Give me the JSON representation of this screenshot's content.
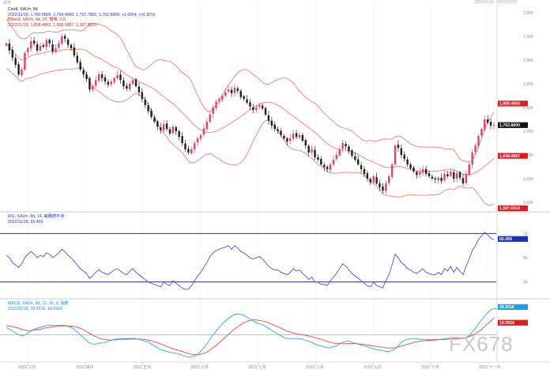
{
  "header": {
    "left_label": "報表",
    "right_label": "2022/11/18 · 2022/11/18"
  },
  "panels": {
    "price": {
      "line1": "Cmdt, XAU=, 8d",
      "line2": "2022/11/18, 1,760.6800, 1,764.4900, 1,757.7800, 1,762.8800, +1.9054, (+0.11%)",
      "line3": "BBand, XAU=, 8d, 20, 簡單, 2.0",
      "line4": "2022/11/18, 1,808.4863, 1,698.0887, 1,587.6910",
      "price_tag": "1,762.8800",
      "upper_tag": "1,808.4863",
      "mid_tag": "1,698.0887",
      "lower_tag": "1,587.6910"
    },
    "rsi": {
      "line1": "RSI, XAU=, 8d, 14, 威爾德平滑",
      "line2": "2022/11/18, 65.459",
      "tag": "65.459"
    },
    "macd": {
      "line1": "MACD, XAU=, 8d, 12, 26, 9, 指數",
      "line2": "2022/11/18, 28.2016, 18.0924",
      "tag_macd": "28.2016",
      "tag_signal": "18.0924"
    }
  },
  "watermark": "FX678",
  "chart_data": [
    {
      "type": "candlestick",
      "title": "Cmdt, XAU=, 8d",
      "ylim": [
        1600,
        2000
      ],
      "y_ticks": [
        "2,000",
        "1,950",
        "1,900",
        "1,850",
        "1,800",
        "1,750",
        "1,700",
        "1,650",
        "1,600"
      ],
      "x_ticks": [
        "2022 三月",
        "2022 四月",
        "2022 五月",
        "2022 六月",
        "2022 七月",
        "2022 八月",
        "2022 九月",
        "2022 十月",
        "2022 十一月"
      ],
      "last": {
        "open": 1760.68,
        "high": 1764.49,
        "low": 1757.78,
        "close": 1762.88,
        "change": 1.9054,
        "change_pct": "+0.11%"
      },
      "bollinger": {
        "period": 20,
        "mult": 2.0,
        "upper": 1808.4863,
        "middle": 1698.0887,
        "lower": 1587.691
      },
      "closes": [
        1935,
        1920,
        1905,
        1890,
        1870,
        1880,
        1915,
        1925,
        1940,
        1935,
        1920,
        1930,
        1928,
        1942,
        1935,
        1918,
        1925,
        1935,
        1950,
        1945,
        1932,
        1925,
        1910,
        1895,
        1880,
        1870,
        1860,
        1838,
        1845,
        1858,
        1870,
        1862,
        1855,
        1848,
        1855,
        1862,
        1868,
        1858,
        1845,
        1840,
        1850,
        1858,
        1845,
        1832,
        1818,
        1805,
        1792,
        1780,
        1770,
        1760,
        1752,
        1765,
        1755,
        1745,
        1760,
        1750,
        1738,
        1725,
        1712,
        1705,
        1712,
        1725,
        1735,
        1742,
        1756,
        1770,
        1785,
        1800,
        1812,
        1818,
        1825,
        1832,
        1838,
        1830,
        1842,
        1835,
        1822,
        1818,
        1810,
        1802,
        1795,
        1800,
        1805,
        1798,
        1785,
        1772,
        1762,
        1755,
        1750,
        1742,
        1735,
        1728,
        1735,
        1745,
        1738,
        1742,
        1730,
        1720,
        1705,
        1712,
        1695,
        1690,
        1680,
        1674,
        1670,
        1680,
        1690,
        1700,
        1712,
        1725,
        1718,
        1708,
        1698,
        1690,
        1680,
        1670,
        1660,
        1650,
        1642,
        1655,
        1640,
        1632,
        1625,
        1640,
        1655,
        1680,
        1720,
        1715,
        1700,
        1692,
        1680,
        1672,
        1665,
        1658,
        1664,
        1670,
        1660,
        1655,
        1650,
        1648,
        1652,
        1645,
        1660,
        1655,
        1665,
        1650,
        1662,
        1652,
        1640,
        1660,
        1680,
        1705,
        1720,
        1740,
        1755,
        1775,
        1768,
        1762,
        1763
      ]
    },
    {
      "type": "line",
      "title": "RSI, XAU=, 8d, 14",
      "ylim": [
        20,
        80
      ],
      "y_ticks": [
        "70",
        "50",
        "30"
      ],
      "levels": [
        70,
        30
      ],
      "last": 65.459,
      "values": [
        52,
        50,
        46,
        44,
        42,
        45,
        50,
        53,
        55,
        53,
        50,
        52,
        51,
        54,
        53,
        50,
        52,
        54,
        57,
        55,
        52,
        50,
        47,
        44,
        41,
        39,
        37,
        33,
        35,
        38,
        40,
        38,
        37,
        36,
        38,
        40,
        41,
        39,
        37,
        36,
        39,
        41,
        38,
        36,
        34,
        32,
        30,
        29,
        28,
        27,
        26,
        30,
        28,
        27,
        31,
        29,
        27,
        25,
        24,
        24,
        27,
        31,
        35,
        38,
        42,
        46,
        51,
        54,
        56,
        57,
        58,
        59,
        60,
        57,
        60,
        58,
        55,
        54,
        52,
        50,
        49,
        50,
        51,
        49,
        46,
        43,
        41,
        40,
        40,
        38,
        37,
        36,
        38,
        41,
        39,
        40,
        37,
        35,
        32,
        34,
        30,
        30,
        28,
        28,
        27,
        31,
        34,
        37,
        41,
        45,
        43,
        40,
        37,
        35,
        33,
        31,
        29,
        27,
        26,
        30,
        27,
        26,
        25,
        31,
        36,
        44,
        53,
        50,
        46,
        44,
        41,
        40,
        38,
        37,
        39,
        41,
        38,
        37,
        36,
        36,
        38,
        36,
        41,
        39,
        43,
        38,
        42,
        39,
        36,
        43,
        49,
        56,
        60,
        65,
        68,
        71,
        69,
        66,
        65
      ]
    },
    {
      "type": "line",
      "title": "MACD, XAU=, 8d, 12, 26, 9",
      "series": [
        {
          "name": "MACD",
          "values": [
            8,
            6,
            4,
            2,
            0,
            -1,
            0,
            2,
            4,
            6,
            7,
            8,
            9,
            10,
            10.5,
            10,
            10,
            10,
            10.5,
            10,
            9,
            8,
            6,
            3,
            0,
            -3,
            -6,
            -9,
            -10,
            -10,
            -9,
            -9,
            -8,
            -7,
            -6,
            -5,
            -4,
            -4,
            -4,
            -4,
            -4,
            -4,
            -4,
            -5,
            -6,
            -7,
            -8,
            -10,
            -12,
            -14,
            -16,
            -17,
            -18,
            -19,
            -19,
            -20,
            -21,
            -22,
            -23,
            -24,
            -24,
            -23,
            -21,
            -18,
            -14,
            -10,
            -5,
            0,
            4,
            8,
            12,
            15,
            18,
            20,
            22,
            22.5,
            22,
            21,
            19,
            17,
            15,
            13,
            12,
            11,
            9,
            7,
            5,
            3,
            1,
            -1,
            -3,
            -4,
            -4,
            -4,
            -4,
            -4,
            -5,
            -6,
            -7,
            -8,
            -10,
            -11,
            -12,
            -13,
            -14,
            -14,
            -13,
            -12,
            -10,
            -8,
            -7,
            -7,
            -8,
            -9,
            -10,
            -11,
            -12,
            -13,
            -14,
            -15,
            -16,
            -16,
            -17,
            -18,
            -18,
            -17,
            -15,
            -12,
            -8,
            -6,
            -5,
            -4,
            -4,
            -4,
            -5,
            -5,
            -5,
            -5,
            -5,
            -5,
            -5,
            -5,
            -4,
            -4,
            -3,
            -3,
            -3,
            -3,
            -4,
            -3,
            -1,
            3,
            7,
            12,
            16,
            20,
            24,
            27,
            28,
            28.2
          ]
        },
        {
          "name": "Signal",
          "values": [
            10,
            9.5,
            9,
            8,
            7,
            6,
            5,
            4.5,
            4.5,
            5,
            5.5,
            6,
            7,
            7.5,
            8,
            8.5,
            9,
            9.5,
            9.5,
            9.6,
            9.5,
            9.3,
            9,
            8,
            7,
            5.5,
            3.5,
            1.5,
            -0.5,
            -2,
            -3.5,
            -4.5,
            -5,
            -5.5,
            -5.6,
            -5.5,
            -5.3,
            -5,
            -4.8,
            -4.7,
            -4.6,
            -4.5,
            -4.5,
            -4.6,
            -4.8,
            -5.2,
            -5.8,
            -6.5,
            -7.5,
            -8.5,
            -9.8,
            -11,
            -12.5,
            -13.8,
            -15,
            -16,
            -17,
            -18,
            -19,
            -20,
            -21,
            -21.5,
            -21.5,
            -21,
            -20,
            -18.5,
            -16.5,
            -14,
            -11.5,
            -8.5,
            -5.5,
            -2.5,
            0.5,
            3.5,
            6.5,
            9,
            11,
            13,
            14.5,
            15.5,
            16,
            16,
            15.5,
            15,
            14,
            13,
            11.5,
            10,
            8.5,
            7,
            5.5,
            4,
            3,
            2,
            1,
            0.5,
            0,
            -0.5,
            -1.2,
            -2,
            -3,
            -4,
            -5,
            -6,
            -7,
            -8,
            -8.8,
            -9.3,
            -9.6,
            -9.7,
            -9.6,
            -9.5,
            -9.5,
            -9.6,
            -9.8,
            -10,
            -10.5,
            -11,
            -11.5,
            -12,
            -12.5,
            -13,
            -13.5,
            -14,
            -14.2,
            -14.2,
            -14,
            -13.2,
            -12.2,
            -11.2,
            -10.2,
            -9.2,
            -8.2,
            -7.5,
            -7,
            -6.5,
            -6.2,
            -6,
            -5.8,
            -5.6,
            -5.4,
            -5.2,
            -5,
            -4.8,
            -4.6,
            -4.4,
            -4.2,
            -4,
            -3.6,
            -3,
            -2,
            -0.6,
            1.2,
            3.4,
            6,
            9,
            12,
            15,
            18.09
          ]
        }
      ],
      "zero_line": 0,
      "last": {
        "macd": 28.2016,
        "signal": 18.0924
      },
      "series_colors": {
        "MACD": "#29a6f0",
        "Signal": "#e8483c"
      }
    }
  ],
  "colors": {
    "up": "#e0407a",
    "down": "#222222",
    "bands": "#f08070",
    "rsi": "#3344cc",
    "panel_line": "#2a2fa8",
    "tag_red": "#d81e1e",
    "tag_black": "#111111",
    "tag_blue": "#1a2fbf",
    "tag_lightblue": "#1f9ee8"
  }
}
